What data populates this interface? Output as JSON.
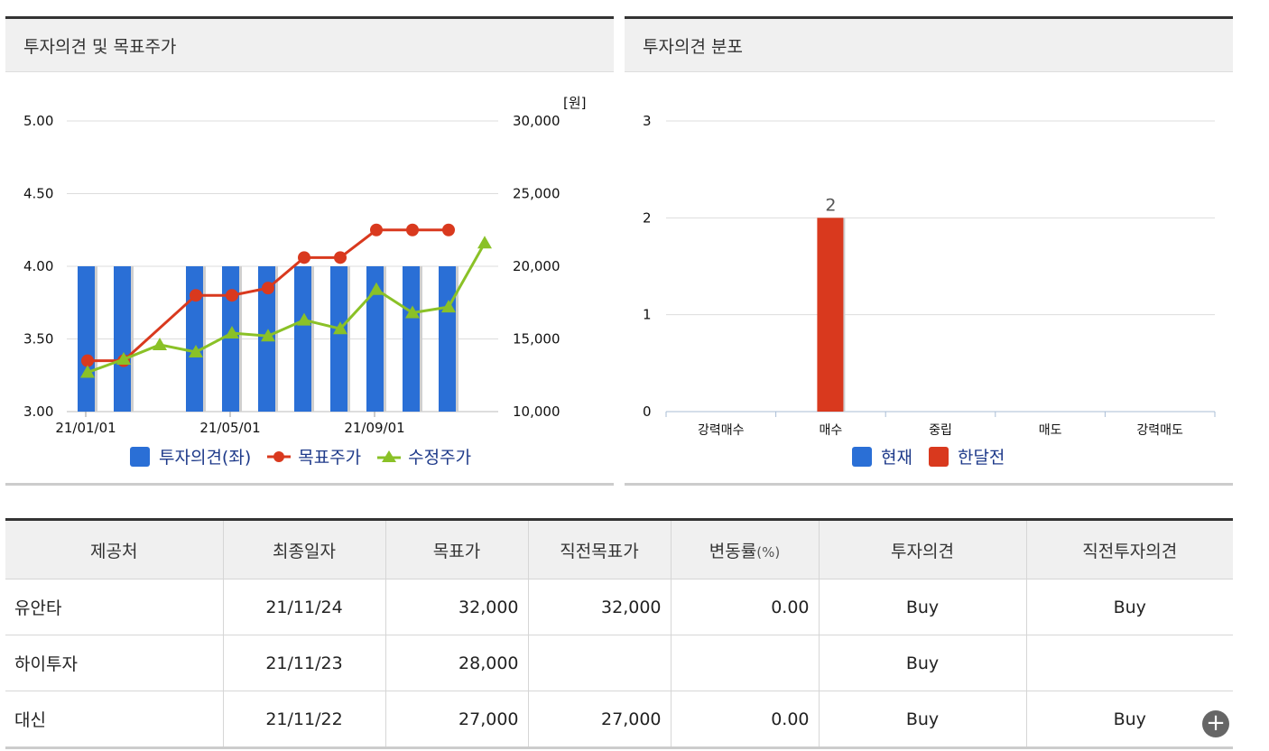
{
  "left_panel": {
    "title": "투자의견 및 목표주가"
  },
  "right_panel": {
    "title": "투자의견 분포"
  },
  "chart_data": [
    {
      "type": "bar+line",
      "y_left_ticks": [
        "5.00",
        "4.50",
        "4.00",
        "3.50",
        "3.00"
      ],
      "y_right_ticks": [
        "30,000",
        "25,000",
        "20,000",
        "15,000",
        "10,000"
      ],
      "y_right_unit": "[원]",
      "x_ticks": [
        "21/01/01",
        "21/05/01",
        "21/09/01"
      ],
      "ylim_left": [
        3.0,
        5.0
      ],
      "ylim_right": [
        10000,
        30000
      ],
      "bars": [
        {
          "slot": 0,
          "value": 4.0
        },
        {
          "slot": 1,
          "value": 4.0
        },
        {
          "slot": 3,
          "value": 4.0
        },
        {
          "slot": 4,
          "value": 4.0
        },
        {
          "slot": 5,
          "value": 4.0
        },
        {
          "slot": 6,
          "value": 4.0
        },
        {
          "slot": 7,
          "value": 4.0
        },
        {
          "slot": 8,
          "value": 4.0
        },
        {
          "slot": 9,
          "value": 4.0
        },
        {
          "slot": 10,
          "value": 4.0
        }
      ],
      "series": [
        {
          "name": "목표주가",
          "color": "#d9391e",
          "points": [
            [
              0,
              13500
            ],
            [
              1,
              13500
            ],
            [
              3,
              18000
            ],
            [
              4,
              18000
            ],
            [
              5,
              18500
            ],
            [
              6,
              20600
            ],
            [
              7,
              20600
            ],
            [
              8,
              22500
            ],
            [
              9,
              22500
            ],
            [
              10,
              22500
            ]
          ]
        },
        {
          "name": "수정주가",
          "color": "#8ac127",
          "points": [
            [
              0,
              12700
            ],
            [
              1,
              13600
            ],
            [
              2,
              14600
            ],
            [
              3,
              14100
            ],
            [
              4,
              15400
            ],
            [
              5,
              15200
            ],
            [
              6,
              16300
            ],
            [
              7,
              15700
            ],
            [
              8,
              18400
            ],
            [
              9,
              16800
            ],
            [
              10,
              17200
            ],
            [
              11,
              21600
            ]
          ]
        }
      ],
      "legend": [
        {
          "label": "투자의견(좌)",
          "color": "#2a6fd6",
          "marker": "square"
        },
        {
          "label": "목표주가",
          "color": "#d9391e",
          "marker": "circle"
        },
        {
          "label": "수정주가",
          "color": "#8ac127",
          "marker": "triangle"
        }
      ]
    },
    {
      "type": "bar",
      "categories": [
        "강력매수",
        "매수",
        "중립",
        "매도",
        "강력매도"
      ],
      "y_ticks": [
        "3",
        "2",
        "1",
        "0"
      ],
      "ylim": [
        0,
        3
      ],
      "series": [
        {
          "name": "현재",
          "color": "#2a6fd6",
          "values": [
            0,
            0,
            0,
            0,
            0
          ]
        },
        {
          "name": "한달전",
          "color": "#d9391e",
          "values": [
            0,
            2,
            0,
            0,
            0
          ]
        }
      ],
      "data_labels": [
        {
          "category": "매수",
          "text": "2"
        }
      ]
    }
  ],
  "table": {
    "headers": [
      "제공처",
      "최종일자",
      "목표가",
      "직전목표가",
      "변동률",
      "(%)",
      "투자의견",
      "직전투자의견"
    ],
    "rows": [
      {
        "provider": "유안타",
        "date": "21/11/24",
        "target": "32,000",
        "prev_target": "32,000",
        "change": "0.00",
        "opinion": "Buy",
        "prev_opinion": "Buy"
      },
      {
        "provider": "하이투자",
        "date": "21/11/23",
        "target": "28,000",
        "prev_target": "",
        "change": "",
        "opinion": "Buy",
        "prev_opinion": ""
      },
      {
        "provider": "대신",
        "date": "21/11/22",
        "target": "27,000",
        "prev_target": "27,000",
        "change": "0.00",
        "opinion": "Buy",
        "prev_opinion": "Buy"
      }
    ],
    "more_icon": "plus-circle-icon"
  }
}
